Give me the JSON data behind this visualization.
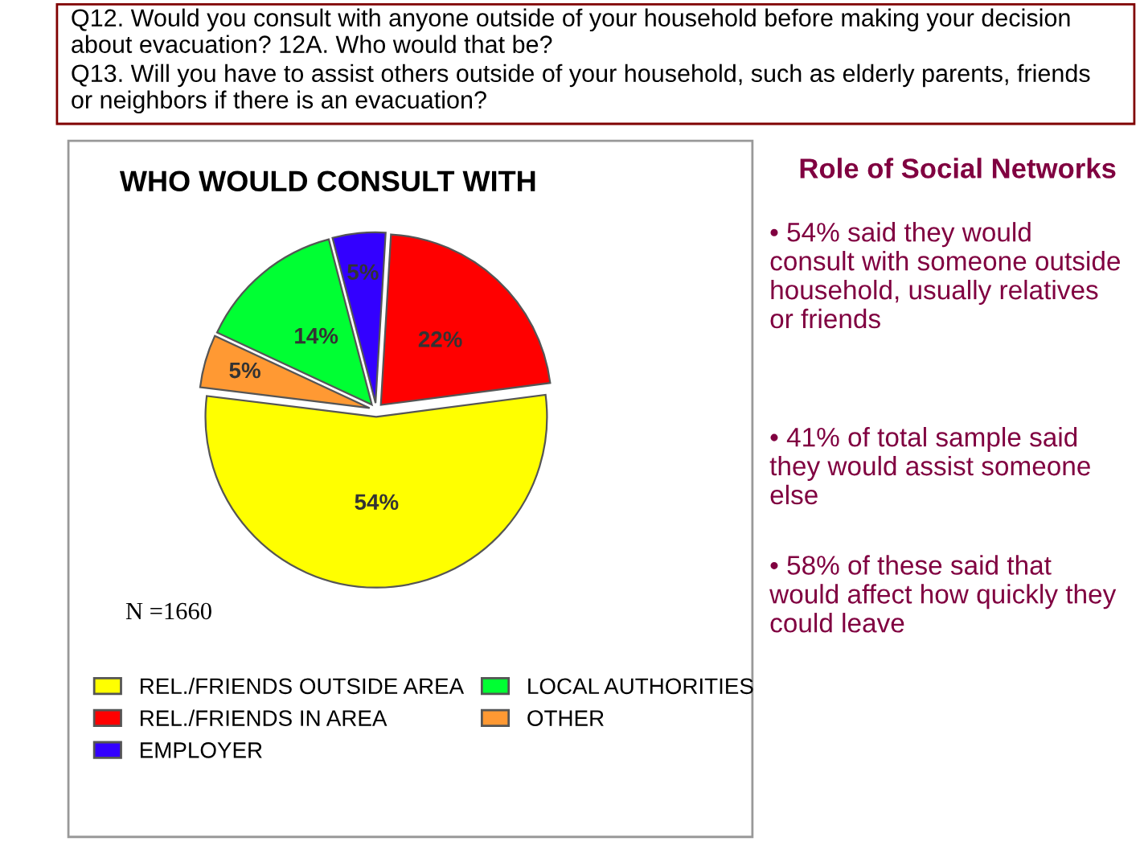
{
  "chart_data": {
    "type": "pie",
    "title": "WHO WOULD CONSULT WITH",
    "categories": [
      "REL./FRIENDS OUTSIDE AREA",
      "REL./FRIENDS IN AREA",
      "EMPLOYER",
      "LOCAL AUTHORITIES",
      "OTHER"
    ],
    "values": [
      54,
      22,
      5,
      14,
      5
    ],
    "colors": [
      "#ffff00",
      "#ff0000",
      "#3300ff",
      "#00ff33",
      "#ff9933"
    ],
    "value_labels": [
      "54%",
      "22%",
      "5%",
      "14%",
      "5%"
    ],
    "legend": "bottom",
    "annotations": [
      "Q12. Would you consult with anyone outside of your household before making your decision about evacuation? 12A. Who would that be?",
      "Q13. Will you have to assist others outside of your household, such as elderly parents, friends or neighbors if there is an evacuation?",
      "Role of Social Networks",
      "• 54% said they would consult with someone outside household, usually relatives or friends",
      "• 41% of total sample said they would assist someone else",
      "• 58% of these said that would affect how quickly they could leave",
      "N =1660"
    ]
  }
}
